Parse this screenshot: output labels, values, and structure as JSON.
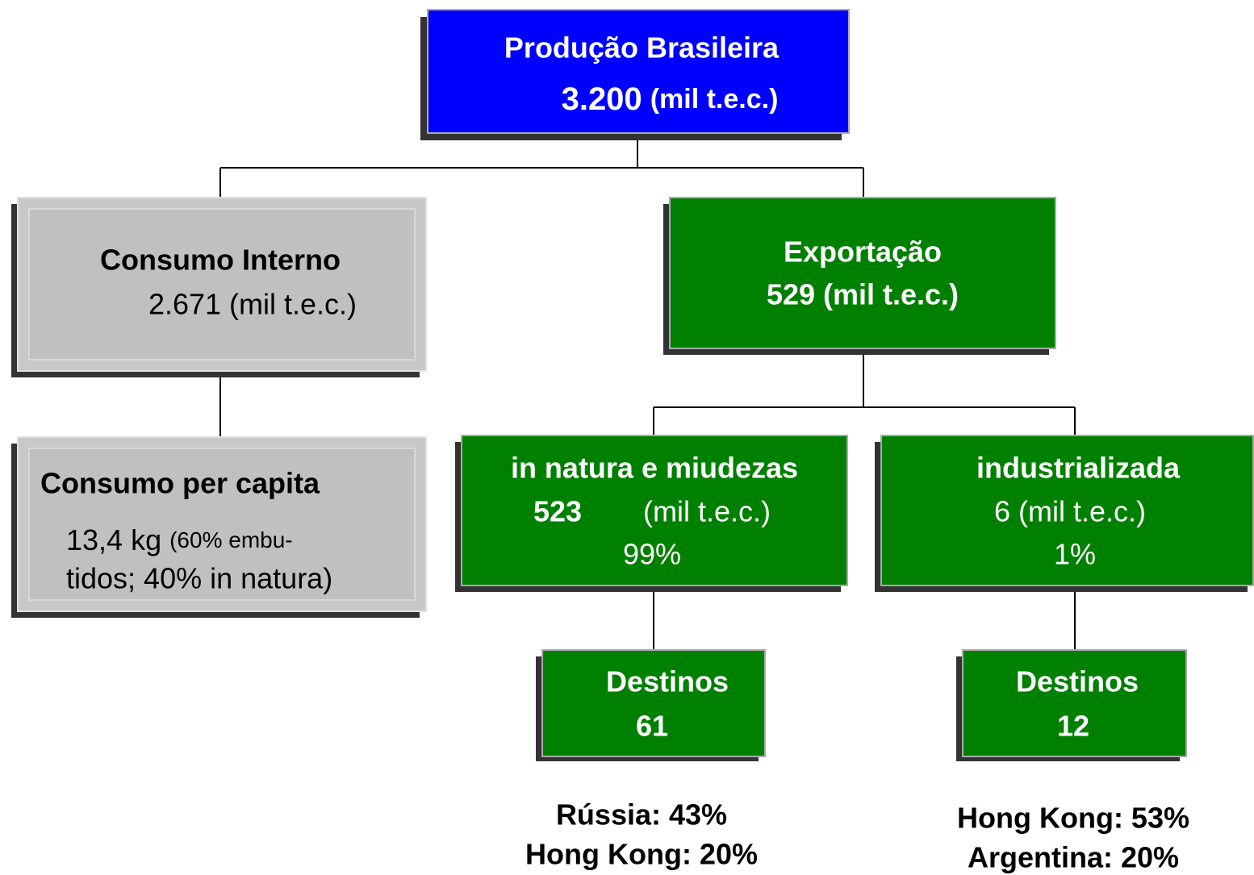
{
  "nodes": [
    {
      "title": "Produção Brasileira",
      "value": "3.200",
      "unit": "(mil t.e.c.)"
    },
    {
      "title": "Consumo Interno",
      "line": "2.671 (mil t.e.c.)"
    },
    {
      "title": "Exportação",
      "line": "529 (mil t.e.c.)"
    },
    {
      "title": "Consumo per capita",
      "value": "13,4 kg",
      "note1": "(60% embu-",
      "note2": "tidos; 40% in natura)"
    },
    {
      "title": "in natura e miudezas",
      "value": "523",
      "unit": "(mil t.e.c.)",
      "share": "99%"
    },
    {
      "title": "industrializada",
      "line": "6 (mil t.e.c.)",
      "share": "1%"
    },
    {
      "title": "Destinos",
      "value": "61"
    },
    {
      "title": "Destinos",
      "value": "12"
    }
  ],
  "destinations": [
    [
      "Rússia: 43%",
      "Hong Kong: 20%"
    ],
    [
      "Hong Kong: 53%",
      "Argentina: 20%"
    ]
  ]
}
